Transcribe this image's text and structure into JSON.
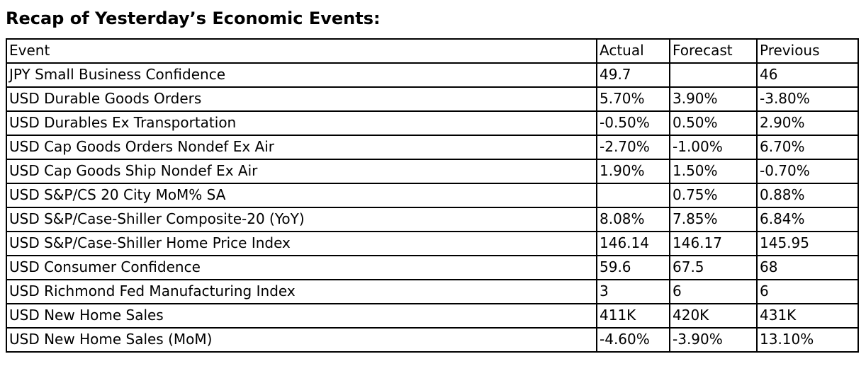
{
  "page": {
    "title": "Recap of Yesterday’s Economic Events:"
  },
  "colors": {
    "text": "#000000",
    "border": "#000000",
    "background": "#ffffff"
  },
  "table": {
    "columns": [
      "Event",
      "Actual",
      "Forecast",
      "Previous"
    ],
    "rows": [
      {
        "event": "JPY Small Business Confidence",
        "actual": "49.7",
        "forecast": "",
        "previous": "46"
      },
      {
        "event": "USD Durable Goods Orders",
        "actual": "5.70%",
        "forecast": "3.90%",
        "previous": "-3.80%"
      },
      {
        "event": "USD Durables Ex Transportation",
        "actual": "-0.50%",
        "forecast": "0.50%",
        "previous": "2.90%"
      },
      {
        "event": "USD Cap Goods Orders Nondef Ex Air",
        "actual": "-2.70%",
        "forecast": "-1.00%",
        "previous": "6.70%"
      },
      {
        "event": "USD Cap Goods Ship Nondef Ex Air",
        "actual": "1.90%",
        "forecast": "1.50%",
        "previous": "-0.70%"
      },
      {
        "event": "USD S&P/CS 20 City MoM% SA",
        "actual": "",
        "forecast": "0.75%",
        "previous": "0.88%"
      },
      {
        "event": "USD S&P/Case-Shiller Composite-20 (YoY)",
        "actual": "8.08%",
        "forecast": "7.85%",
        "previous": "6.84%"
      },
      {
        "event": "USD S&P/Case-Shiller Home Price Index",
        "actual": "146.14",
        "forecast": "146.17",
        "previous": "145.95"
      },
      {
        "event": "USD Consumer Confidence",
        "actual": "59.6",
        "forecast": "67.5",
        "previous": "68"
      },
      {
        "event": "USD Richmond Fed Manufacturing Index",
        "actual": "3",
        "forecast": "6",
        "previous": "6"
      },
      {
        "event": "USD New Home Sales",
        "actual": "411K",
        "forecast": "420K",
        "previous": "431K"
      },
      {
        "event": "USD New Home Sales (MoM)",
        "actual": "-4.60%",
        "forecast": "-3.90%",
        "previous": "13.10%"
      }
    ]
  }
}
